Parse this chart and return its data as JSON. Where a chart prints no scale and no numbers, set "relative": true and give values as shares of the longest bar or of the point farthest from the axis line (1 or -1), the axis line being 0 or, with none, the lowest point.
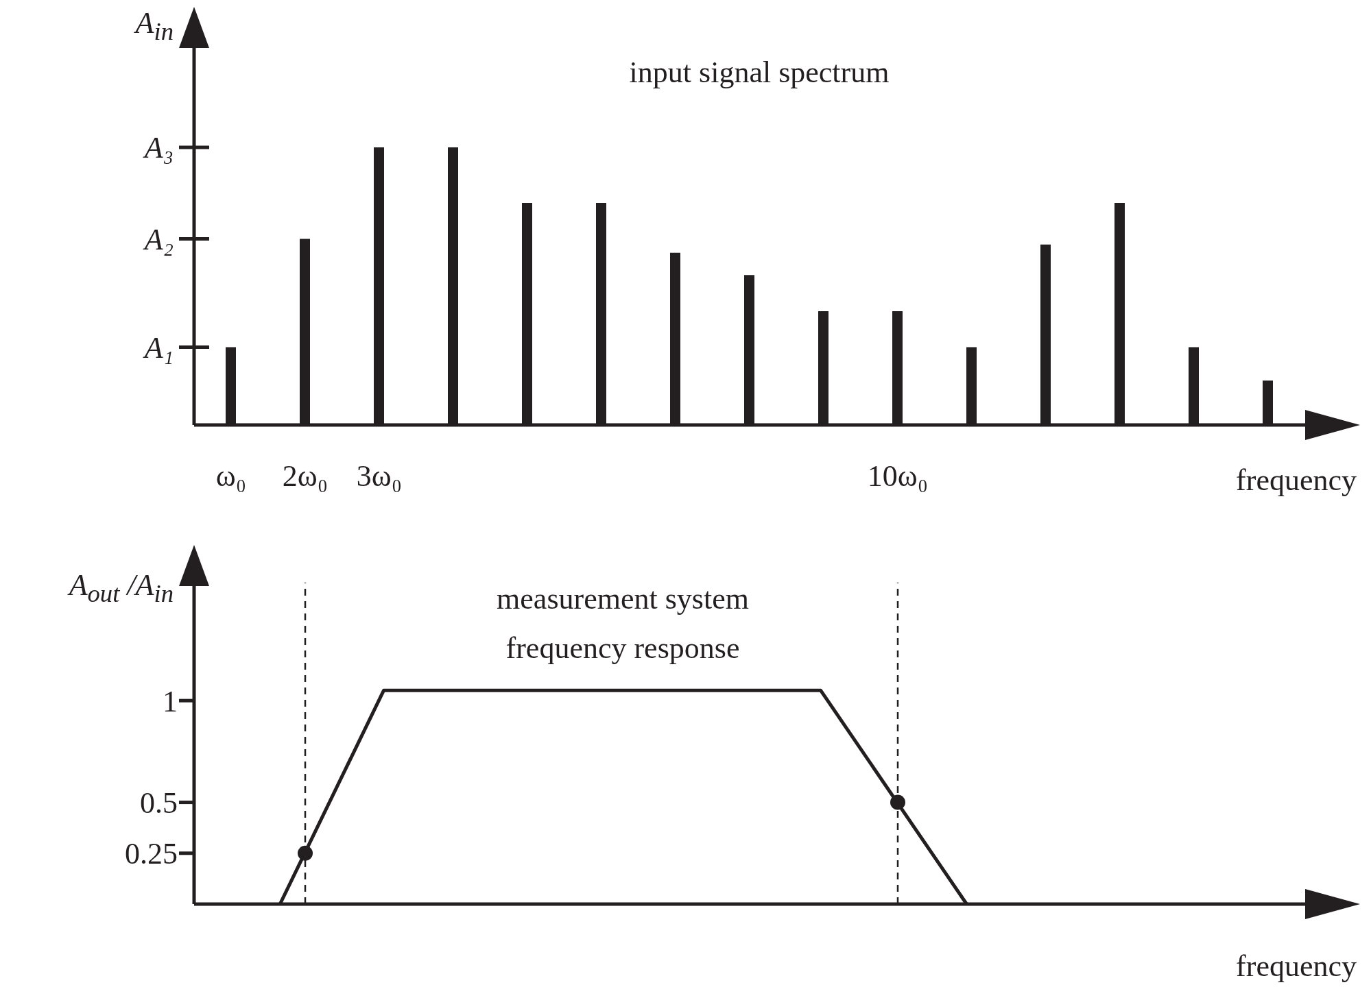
{
  "chart_data": [
    {
      "type": "bar",
      "title": "input signal spectrum",
      "xlabel": "frequency",
      "ylabel": "A$_{in}$",
      "relative": true,
      "x": [
        1,
        2,
        3,
        4,
        5,
        6,
        7,
        8,
        9,
        10,
        11,
        12,
        13,
        14,
        15
      ],
      "values": [
        0.28,
        0.67,
        1,
        1,
        0.8,
        0.8,
        0.62,
        0.54,
        0.41,
        0.41,
        0.28,
        0.65,
        0.8,
        0.28,
        0.16
      ],
      "color": "#231f20",
      "xlim": [
        0.5,
        15.5
      ],
      "xticks": [
        {
          "value": 1,
          "label": "ω₀"
        },
        {
          "value": 2,
          "label": "2ω₀"
        },
        {
          "value": 3,
          "label": "3ω₀"
        },
        {
          "value": 10,
          "label": "10ω₀"
        }
      ],
      "ref_lines": [
        {
          "axis": "y",
          "value": 0.28,
          "label": "A₁"
        },
        {
          "axis": "y",
          "value": 0.67,
          "label": "A₂"
        },
        {
          "axis": "y",
          "value": 1,
          "label": "A₃"
        }
      ]
    },
    {
      "type": "line",
      "title": "measurement system frequency response",
      "xlabel": "frequency",
      "ylabel": "A$_{out}$ /A$_{in}$",
      "series": [
        {
          "type": "line",
          "x": [
            1.66,
            3.06,
            8.96,
            10.93
          ],
          "values": [
            0,
            1.05,
            1.05,
            0
          ],
          "color": "#231f20",
          "marker": "none"
        },
        {
          "type": "scatter",
          "x": [
            2,
            10
          ],
          "values": [
            0.25,
            0.5
          ],
          "color": "#231f20",
          "marker": "circle"
        }
      ],
      "xlim": [
        0.5,
        15.5
      ],
      "ylim": [
        0,
        1.58
      ],
      "yticks": [
        0.25,
        0.5,
        1
      ],
      "tick_labels": "y",
      "ref_lines": [
        {
          "axis": "x",
          "value": 2,
          "line_style": "dashed"
        },
        {
          "axis": "x",
          "value": 10,
          "line_style": "dashed"
        }
      ]
    }
  ]
}
